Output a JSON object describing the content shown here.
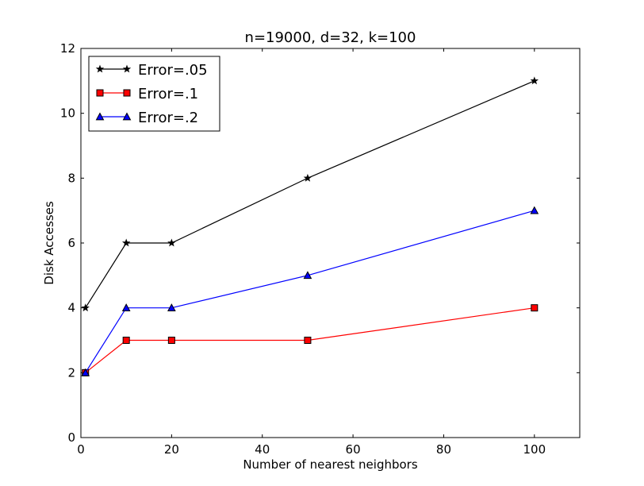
{
  "chart_data": {
    "type": "line",
    "title": "n=19000, d=32, k=100",
    "xlabel": "Number of nearest neighbors",
    "ylabel": "Disk Accesses",
    "xlim": [
      0,
      110
    ],
    "ylim": [
      0,
      12
    ],
    "xticks": [
      0,
      20,
      40,
      60,
      80,
      100
    ],
    "yticks": [
      0,
      2,
      4,
      6,
      8,
      10,
      12
    ],
    "grid": false,
    "legend_position": "top-left",
    "x": [
      1,
      10,
      20,
      50,
      100
    ],
    "series": [
      {
        "name": "Error=.05",
        "values": [
          4,
          6,
          6,
          8,
          11
        ],
        "color": "#000000",
        "marker": "star"
      },
      {
        "name": "Error=.1",
        "values": [
          2,
          3,
          3,
          3,
          4
        ],
        "color": "#ff0000",
        "marker": "square"
      },
      {
        "name": "Error=.2",
        "values": [
          2,
          4,
          4,
          5,
          7
        ],
        "color": "#0000ff",
        "marker": "triangle"
      }
    ]
  }
}
